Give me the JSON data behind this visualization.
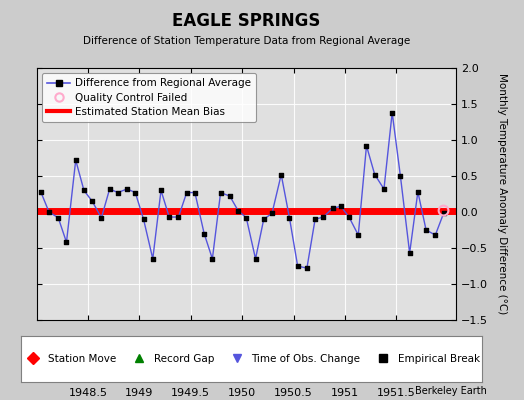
{
  "title": "EAGLE SPRINGS",
  "subtitle": "Difference of Station Temperature Data from Regional Average",
  "ylabel_right": "Monthly Temperature Anomaly Difference (°C)",
  "background_color": "#cccccc",
  "plot_background": "#e0e0e0",
  "xlim": [
    1948.0,
    1952.08
  ],
  "ylim": [
    -1.5,
    2.0
  ],
  "yticks": [
    -1.5,
    -1.0,
    -0.5,
    0.0,
    0.5,
    1.0,
    1.5,
    2.0
  ],
  "xticks": [
    1948.5,
    1949.0,
    1949.5,
    1950.0,
    1950.5,
    1951.0,
    1951.5
  ],
  "bias_value": 0.02,
  "line_color": "#5555dd",
  "marker_color": "black",
  "bias_color": "red",
  "qc_fail_color": "#ffaacc",
  "watermark": "Berkeley Earth",
  "x_data": [
    1948.04,
    1948.12,
    1948.21,
    1948.29,
    1948.38,
    1948.46,
    1948.54,
    1948.63,
    1948.71,
    1948.79,
    1948.88,
    1948.96,
    1949.04,
    1949.13,
    1949.21,
    1949.29,
    1949.38,
    1949.46,
    1949.54,
    1949.63,
    1949.71,
    1949.79,
    1949.88,
    1949.96,
    1950.04,
    1950.13,
    1950.21,
    1950.29,
    1950.38,
    1950.46,
    1950.54,
    1950.63,
    1950.71,
    1950.79,
    1950.88,
    1950.96,
    1951.04,
    1951.13,
    1951.21,
    1951.29,
    1951.38,
    1951.46,
    1951.54,
    1951.63,
    1951.71,
    1951.79,
    1951.88,
    1951.96
  ],
  "y_data": [
    0.28,
    0.0,
    -0.08,
    -0.42,
    0.72,
    0.3,
    0.15,
    -0.08,
    0.32,
    0.27,
    0.32,
    0.27,
    -0.1,
    -0.65,
    0.3,
    -0.07,
    -0.07,
    0.27,
    0.27,
    -0.3,
    -0.65,
    0.27,
    0.22,
    0.02,
    -0.08,
    -0.65,
    -0.1,
    -0.02,
    0.52,
    -0.08,
    -0.75,
    -0.78,
    -0.1,
    -0.07,
    0.05,
    0.08,
    -0.07,
    -0.32,
    0.92,
    0.52,
    0.32,
    1.38,
    0.5,
    -0.57,
    0.28,
    -0.25,
    -0.32,
    -0.02
  ],
  "qc_x": [
    1951.96
  ],
  "qc_y": [
    0.02
  ]
}
